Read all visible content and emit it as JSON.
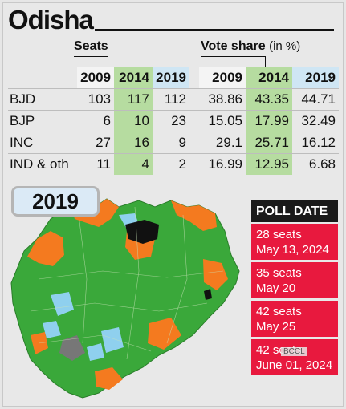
{
  "title": "Odisha",
  "seats_header": "Seats",
  "vote_header": "Vote share",
  "vote_unit": "(in %)",
  "years": [
    "2009",
    "2014",
    "2019"
  ],
  "rows": [
    {
      "party": "BJD",
      "seats": [
        "103",
        "117",
        "112"
      ],
      "votes": [
        "38.86",
        "43.35",
        "44.71"
      ]
    },
    {
      "party": "BJP",
      "seats": [
        "6",
        "10",
        "23"
      ],
      "votes": [
        "15.05",
        "17.99",
        "32.49"
      ]
    },
    {
      "party": "INC",
      "seats": [
        "27",
        "16",
        "9"
      ],
      "votes": [
        "29.1",
        "25.71",
        "16.12"
      ]
    },
    {
      "party": "IND & oth",
      "seats": [
        "11",
        "4",
        "2"
      ],
      "votes": [
        "16.99",
        "12.95",
        "6.68"
      ]
    }
  ],
  "map": {
    "year_label": "2019",
    "colors": {
      "bjd": "#3aa83a",
      "bjp": "#f47a1f",
      "inc": "#8fd0ee",
      "other": "#777777",
      "none": "#111111"
    }
  },
  "poll": {
    "heading": "POLL DATE",
    "phases": [
      {
        "seats": "28 seats",
        "date": "May 13, 2024"
      },
      {
        "seats": "35 seats",
        "date": "May 20"
      },
      {
        "seats": "42 seats",
        "date": "May 25"
      },
      {
        "seats": "42 seats",
        "date": "June 01, 2024"
      }
    ]
  },
  "watermark": "BCCL"
}
